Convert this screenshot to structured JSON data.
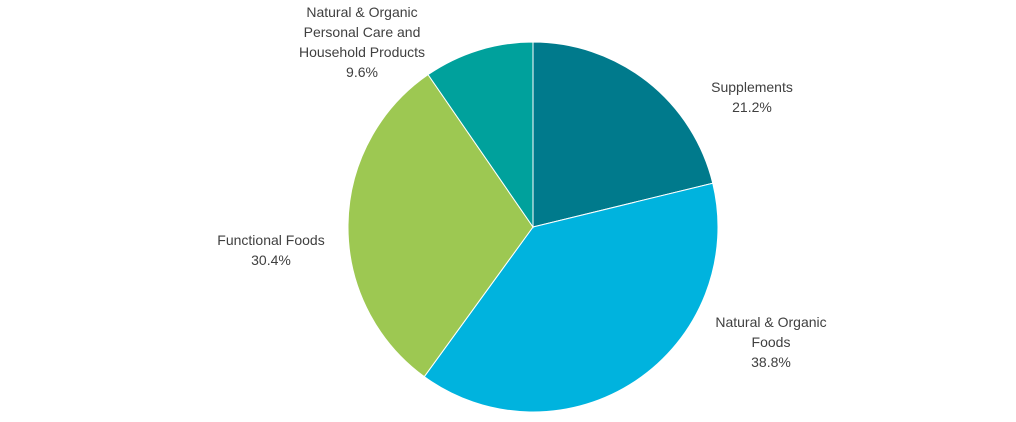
{
  "chart_data": {
    "type": "pie",
    "title": "",
    "start_angle_deg": 0,
    "direction": "clockwise",
    "slices": [
      {
        "name": "Supplements",
        "label_lines": [
          "Supplements"
        ],
        "value": 21.2,
        "display": "21.2%",
        "color": "#007A8C"
      },
      {
        "name": "Natural & Organic Foods",
        "label_lines": [
          "Natural & Organic",
          "Foods"
        ],
        "value": 38.8,
        "display": "38.8%",
        "color": "#00B3DE"
      },
      {
        "name": "Functional Foods",
        "label_lines": [
          "Functional Foods"
        ],
        "value": 30.4,
        "display": "30.4%",
        "color": "#9DC852"
      },
      {
        "name": "Natural & Organic Personal Care and Household Products",
        "label_lines": [
          "Natural & Organic",
          "Personal Care and",
          "Household Products"
        ],
        "value": 9.6,
        "display": "9.6%",
        "color": "#00A19C"
      }
    ],
    "legend": "none",
    "data_labels": "outside"
  }
}
